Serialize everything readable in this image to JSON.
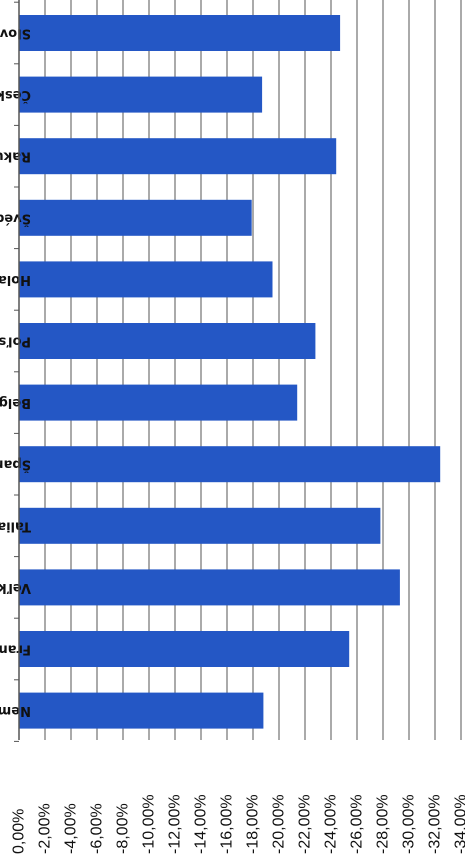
{
  "chart_data": {
    "type": "bar",
    "orientation": "horizontal",
    "rotated": "180deg",
    "categories": [
      "Slovensko",
      "Česká republika",
      "Rakúsko",
      "Švédsko",
      "Holandsko",
      "Poľsko",
      "Belgicko",
      "Španielsko",
      "Taliansko",
      "Veľká Británia",
      "Francúzsko",
      "Nemecko"
    ],
    "values": [
      -24.7,
      -18.7,
      -24.4,
      -17.9,
      -19.5,
      -22.8,
      -21.4,
      -32.4,
      -27.8,
      -29.3,
      -25.4,
      -18.8
    ],
    "xlim": [
      0,
      -34
    ],
    "tick_labels": [
      "0,00%",
      "-2,00%",
      "-4,00%",
      "-6,00%",
      "-8,00%",
      "-10,00%",
      "-12,00%",
      "-14,00%",
      "-16,00%",
      "-18,00%",
      "-20,00%",
      "-22,00%",
      "-24,00%",
      "-26,00%",
      "-28,00%",
      "-30,00%",
      "-32,00%",
      "-34,00%"
    ],
    "grid": true,
    "bar_color": "#2457c5",
    "title": "",
    "xlabel": "",
    "ylabel": ""
  }
}
